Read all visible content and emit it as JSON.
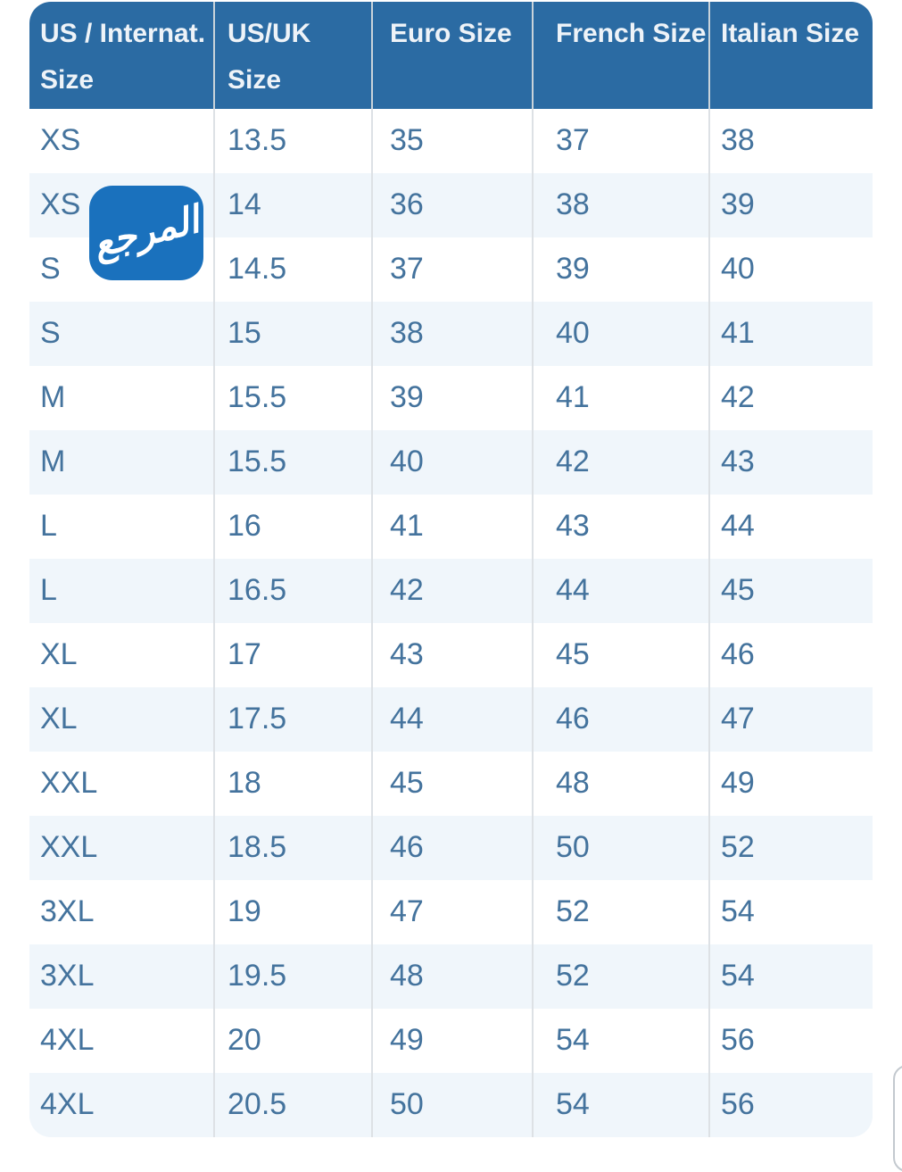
{
  "chart_data": {
    "type": "table",
    "columns": [
      "US / Internat. Size",
      "US/UK Size",
      "Euro Size",
      "French Size",
      "Italian Size"
    ],
    "rows": [
      [
        "XS",
        "13.5",
        "35",
        "37",
        "38"
      ],
      [
        "XS",
        "14",
        "36",
        "38",
        "39"
      ],
      [
        "S",
        "14.5",
        "37",
        "39",
        "40"
      ],
      [
        "S",
        "15",
        "38",
        "40",
        "41"
      ],
      [
        "M",
        "15.5",
        "39",
        "41",
        "42"
      ],
      [
        "M",
        "15.5",
        "40",
        "42",
        "43"
      ],
      [
        "L",
        "16",
        "41",
        "43",
        "44"
      ],
      [
        "L",
        "16.5",
        "42",
        "44",
        "45"
      ],
      [
        "XL",
        "17",
        "43",
        "45",
        "46"
      ],
      [
        "XL",
        "17.5",
        "44",
        "46",
        "47"
      ],
      [
        "XXL",
        "18",
        "45",
        "48",
        "49"
      ],
      [
        "XXL",
        "18.5",
        "46",
        "50",
        "52"
      ],
      [
        "3XL",
        "19",
        "47",
        "52",
        "54"
      ],
      [
        "3XL",
        "19.5",
        "48",
        "52",
        "54"
      ],
      [
        "4XL",
        "20",
        "49",
        "54",
        "56"
      ],
      [
        "4XL",
        "20.5",
        "50",
        "54",
        "56"
      ]
    ]
  },
  "watermark": {
    "label": "المرجع"
  },
  "colors": {
    "header_bg": "#2b6ba3",
    "header_text": "#eef3f8",
    "body_text": "#44739d",
    "zebra_row": "#f0f6fb",
    "separator_body": "#dde1e5",
    "separator_header": "#c9d3da",
    "logo_bg": "#1a71bd",
    "logo_text": "#ffffff"
  }
}
